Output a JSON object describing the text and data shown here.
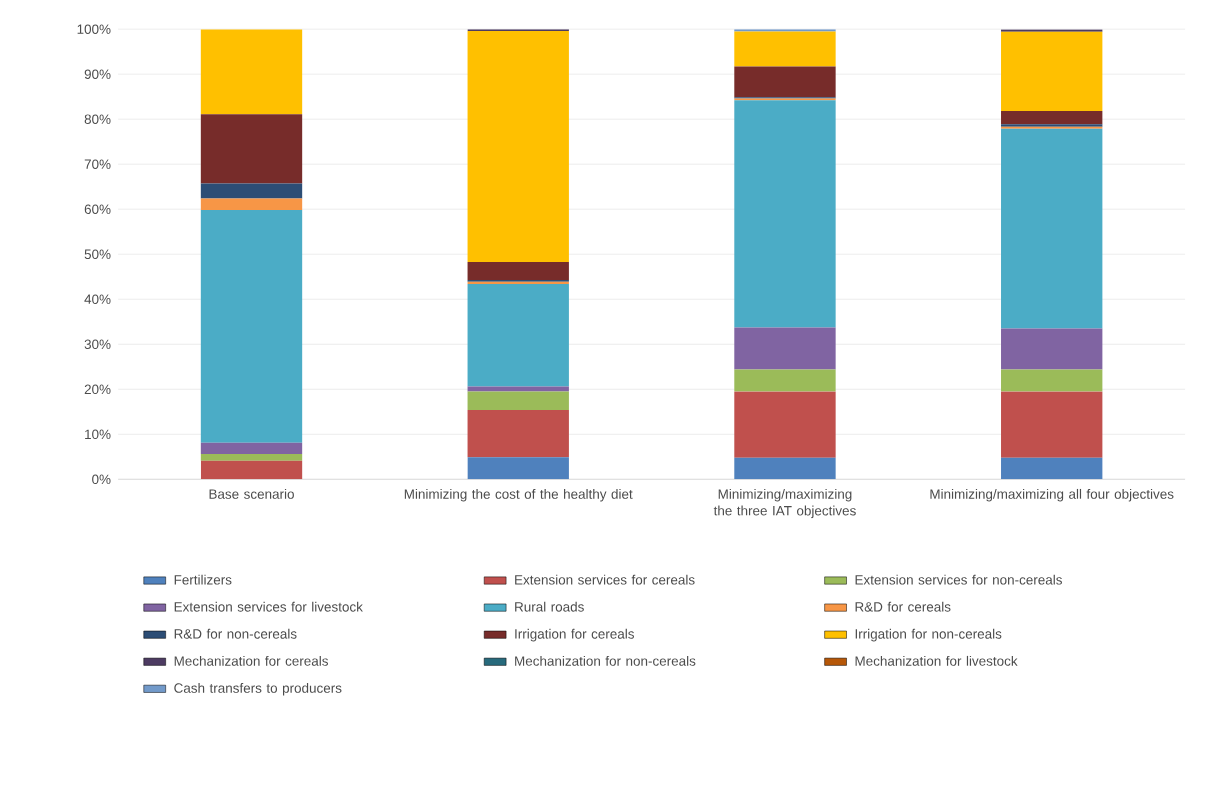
{
  "chart_data": {
    "type": "bar",
    "stacked": true,
    "grid": "y",
    "legend": "bottom",
    "categories": [
      "Base scenario",
      "Minimizing the cost of the healthy diet",
      "Minimizing/maximizing the three IAT objectives",
      "Minimizing/maximizing all four objectives"
    ],
    "ylim": [
      0,
      100
    ],
    "yticks": [
      {
        "value": 0,
        "label": "0%"
      },
      {
        "value": 10,
        "label": "10%"
      },
      {
        "value": 20,
        "label": "20%"
      },
      {
        "value": 30,
        "label": "30%"
      },
      {
        "value": 40,
        "label": "40%"
      },
      {
        "value": 50,
        "label": "50%"
      },
      {
        "value": 60,
        "label": "60%"
      },
      {
        "value": 70,
        "label": "70%"
      },
      {
        "value": 80,
        "label": "80%"
      },
      {
        "value": 90,
        "label": "90%"
      },
      {
        "value": 100,
        "label": "100%"
      }
    ],
    "series": [
      {
        "name": "Fertilizers",
        "color": "#4f81bd",
        "values": [
          0,
          4.9,
          4.8,
          4.8
        ]
      },
      {
        "name": "Extension services for cereals",
        "color": "#c0504d",
        "values": [
          4.1,
          10.5,
          14.7,
          14.7
        ]
      },
      {
        "name": "Extension services for non-cereals",
        "color": "#9bbb59",
        "values": [
          1.5,
          4.1,
          4.9,
          4.9
        ]
      },
      {
        "name": "Extension services for livestock",
        "color": "#8064a2",
        "values": [
          2.5,
          1.1,
          9.3,
          9.1
        ]
      },
      {
        "name": "Rural roads",
        "color": "#4bacc6",
        "values": [
          51.7,
          22.8,
          50.5,
          44.4
        ]
      },
      {
        "name": "R&D for cereals",
        "color": "#f79646",
        "values": [
          2.6,
          0.5,
          0.4,
          0.4
        ]
      },
      {
        "name": "R&D for non-cereals",
        "color": "#2c4d75",
        "values": [
          3.3,
          0.4,
          0.3,
          0.6
        ]
      },
      {
        "name": "Irrigation for cereals",
        "color": "#772c2a",
        "values": [
          15.4,
          4.0,
          6.8,
          2.9
        ]
      },
      {
        "name": "Irrigation for non-cereals",
        "color": "#ffc000",
        "values": [
          18.8,
          51.3,
          7.8,
          17.6
        ]
      },
      {
        "name": "Mechanization for cereals",
        "color": "#4d3b62",
        "values": [
          null,
          0.4,
          0,
          0.5
        ]
      },
      {
        "name": "Mechanization for non-cereals",
        "color": "#276a7c",
        "values": [
          0,
          0,
          0,
          0
        ]
      },
      {
        "name": "Mechanization for livestock",
        "color": "#b65708",
        "values": [
          0,
          0,
          0,
          0
        ]
      },
      {
        "name": "Cash transfers to producers",
        "color": "#729aca",
        "values": [
          0,
          0,
          0.5,
          0
        ]
      }
    ]
  }
}
